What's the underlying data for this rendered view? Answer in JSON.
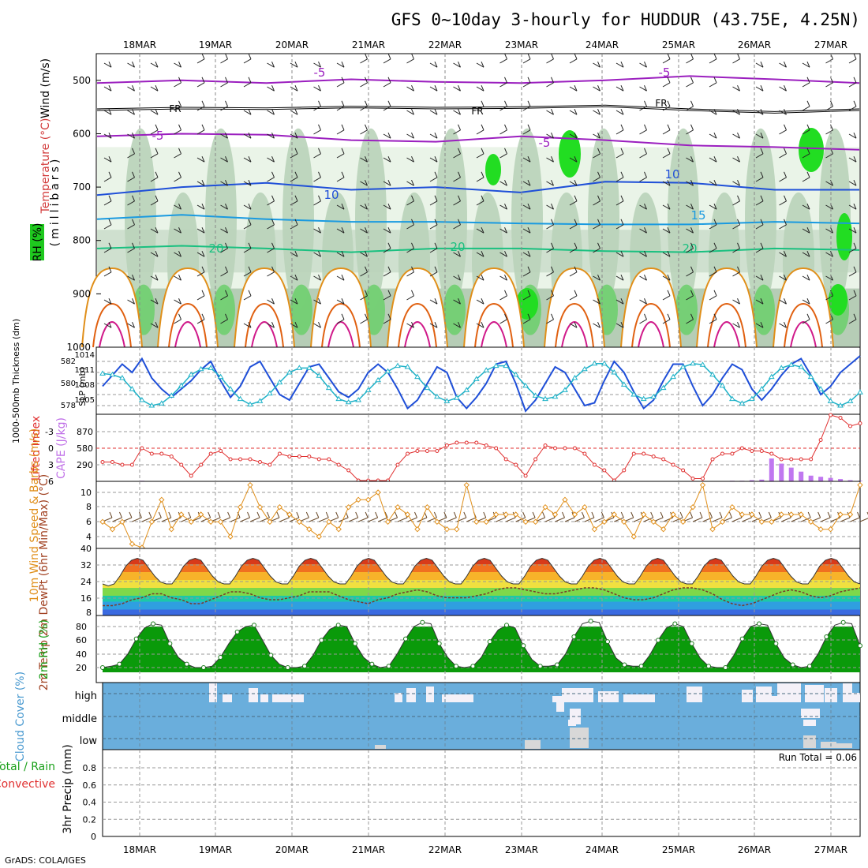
{
  "title": "GFS 0~10day 3-hourly for HUDDUR (43.75E, 4.25N)",
  "credit": "GrADS: COLA/IGES",
  "dates": [
    "18MAR",
    "19MAR",
    "20MAR",
    "21MAR",
    "22MAR",
    "23MAR",
    "24MAR",
    "25MAR",
    "26MAR",
    "27MAR"
  ],
  "colors": {
    "purple": "#9b1fbf",
    "blue": "#1f4fd8",
    "cyan": "#1fb2c8",
    "orange": "#e08f1a",
    "red": "#e03030",
    "green": "#1aa01a",
    "magenta": "#d01a8a",
    "lightblue": "#6aaedc"
  },
  "chart_data": [
    {
      "type": "line",
      "panel": "upper-air",
      "ylabel": "(millibars)",
      "legend_labels": [
        "Wind (m/s)",
        "Temperature (°C)",
        "RH (%)"
      ],
      "y_ticks": [
        "500",
        "600",
        "700",
        "800",
        "900",
        "1000"
      ],
      "ylim": [
        1000,
        450
      ],
      "contour_labels": [
        "-5",
        "-5",
        "-5",
        "-5",
        "FR",
        "FR",
        "FR",
        "10",
        "10",
        "15",
        "20",
        "20",
        "20"
      ],
      "series": [
        {
          "name": "-5 upper (hPa)",
          "values": [
            505,
            500,
            505,
            498,
            503,
            505,
            500,
            492,
            498,
            505
          ]
        },
        {
          "name": "FR (hPa)",
          "values": [
            555,
            552,
            553,
            550,
            552,
            551,
            548,
            555,
            560,
            555
          ]
        },
        {
          "name": "-5 lower (hPa)",
          "values": [
            605,
            600,
            602,
            612,
            615,
            605,
            612,
            622,
            625,
            630
          ]
        },
        {
          "name": "10 (hPa)",
          "values": [
            715,
            700,
            692,
            705,
            700,
            710,
            690,
            692,
            705,
            705
          ]
        },
        {
          "name": "15 (hPa)",
          "values": [
            760,
            752,
            760,
            765,
            765,
            768,
            770,
            770,
            765,
            768
          ]
        },
        {
          "name": "20 (hPa)",
          "values": [
            815,
            810,
            815,
            822,
            815,
            815,
            820,
            822,
            815,
            818
          ]
        }
      ]
    },
    {
      "type": "line",
      "panel": "thickness-slp",
      "ylabel_left": "1000-500mb Thickness (dm)",
      "ylabel_right": "SLP (mb)",
      "left_ticks": [
        "582",
        "580",
        "578"
      ],
      "right_ticks": [
        "1014",
        "1011",
        "1008",
        "1005"
      ],
      "series": [
        {
          "name": "SLP (mb)",
          "values": [
            1008.5,
            1010.5,
            1012.5,
            1011,
            1013.5,
            1010,
            1008,
            1006.5,
            1008,
            1009.5,
            1011.5,
            1013,
            1009.5,
            1006.5,
            1008.5,
            1012,
            1013,
            1010,
            1007,
            1006,
            1009,
            1012,
            1012.5,
            1010,
            1007.5,
            1006.5,
            1008,
            1011,
            1012.5,
            1011,
            1008,
            1004.5,
            1006,
            1009,
            1012,
            1011,
            1006.5,
            1004.5,
            1006.5,
            1009,
            1012.5,
            1013,
            1009,
            1004,
            1006,
            1009,
            1012,
            1011,
            1008,
            1005,
            1005.5,
            1009.5,
            1013,
            1011,
            1007.5,
            1004.5,
            1006,
            1009.5,
            1012.5,
            1012.5,
            1008.5,
            1005,
            1007,
            1010,
            1012.5,
            1011.5,
            1008,
            1006,
            1008,
            1010.5,
            1012.5,
            1013.5,
            1010.5,
            1007,
            1008.5,
            1011,
            1012.5,
            1014
          ]
        },
        {
          "name": "Thickness (dm)",
          "values": [
            580.9,
            580.8,
            580.5,
            579.5,
            578.5,
            578,
            578.2,
            578.9,
            579.8,
            580.8,
            581.3,
            581.4,
            580.6,
            579.5,
            578.6,
            578.1,
            578.4,
            579.1,
            580.1,
            581,
            581.4,
            581.4,
            580.7,
            579.6,
            578.6,
            578.3,
            578.5,
            579.4,
            580.3,
            581.1,
            581.6,
            581.5,
            580.6,
            579.6,
            578.8,
            578.4,
            578.7,
            579.4,
            580.4,
            581.2,
            581.6,
            581.6,
            580.8,
            579.8,
            578.9,
            578.6,
            578.8,
            579.4,
            580.5,
            581.3,
            581.8,
            581.8,
            581,
            579.9,
            579,
            578.6,
            578.8,
            579.6,
            580.6,
            581.5,
            581.8,
            581.7,
            580.8,
            579.8,
            578.6,
            578.2,
            578.6,
            579.5,
            580.6,
            581.4,
            581.7,
            581.5,
            580.6,
            579.5,
            578.4,
            578,
            578.4,
            579.2
          ]
        }
      ]
    },
    {
      "type": "bar",
      "panel": "stability",
      "ylabel_left": "Lifted Index",
      "ylabel_right": "CAPE (J/kg)",
      "left_ticks": [
        "-3",
        "0",
        "3",
        "6"
      ],
      "right_ticks": [
        "870",
        "580",
        "290"
      ],
      "series": [
        {
          "name": "Lifted Index",
          "values": [
            2.5,
            2.5,
            3,
            3,
            0,
            1,
            1,
            1.5,
            3,
            5,
            3,
            1,
            0.5,
            2,
            2,
            2,
            2.5,
            3,
            1,
            1.5,
            1.5,
            1.5,
            2,
            2,
            3,
            4,
            6,
            6,
            6,
            6,
            3,
            1,
            0.5,
            0.5,
            0.5,
            -0.5,
            -1,
            -1,
            -1,
            -0.5,
            0,
            2,
            3,
            5,
            2,
            -0.5,
            0,
            0,
            0,
            1,
            3,
            4,
            6,
            4,
            1,
            1,
            1.5,
            2,
            3,
            4,
            5.5,
            5.5,
            2,
            1,
            1,
            0,
            0.5,
            0.5,
            1,
            2,
            2,
            2,
            2,
            -1.5,
            -6,
            -5.5,
            -4,
            -4.5
          ]
        },
        {
          "name": "CAPE (J/kg)",
          "values": [
            0,
            0,
            0,
            0,
            10,
            0,
            0,
            0,
            0,
            0,
            0,
            0,
            0,
            0,
            0,
            0,
            0,
            0,
            0,
            0,
            0,
            0,
            0,
            0,
            0,
            0,
            0,
            0,
            0,
            0,
            0,
            0,
            0,
            0,
            0,
            0,
            0,
            0,
            0,
            0,
            0,
            0,
            0,
            0,
            0,
            0,
            0,
            0,
            0,
            0,
            0,
            0,
            0,
            0,
            0,
            0,
            0,
            0,
            0,
            0,
            0,
            0,
            0,
            5,
            10,
            10,
            20,
            30,
            400,
            310,
            240,
            170,
            100,
            80,
            60,
            40,
            20,
            10
          ]
        }
      ]
    },
    {
      "type": "line",
      "panel": "wind",
      "ylabel": "10m Wind Speed & Barbs (m/s)",
      "y_ticks": [
        "10",
        "8",
        "6",
        "4"
      ],
      "series": [
        {
          "name": "10m Wind Speed (m/s)",
          "values": [
            6,
            5,
            6,
            3,
            1,
            6,
            9,
            5,
            7,
            6,
            7,
            6,
            6,
            4,
            8,
            11,
            8,
            6,
            8,
            7,
            6,
            5,
            4,
            6,
            5,
            8,
            9,
            9,
            10,
            6,
            8,
            7,
            5,
            8,
            6,
            5,
            5,
            11,
            6,
            6,
            7,
            7,
            7,
            6,
            6,
            8,
            7,
            9,
            7,
            8,
            5,
            6,
            7,
            6,
            4,
            7,
            6,
            5,
            7,
            6,
            8,
            11,
            5,
            6,
            8,
            7,
            7,
            6,
            6,
            7,
            7,
            7,
            6,
            5,
            5,
            7,
            7,
            11
          ]
        }
      ]
    },
    {
      "type": "area",
      "panel": "temperature",
      "ylabel": "2m Temp 2m DewPt (6hr Min/Max) (°C)",
      "y_ticks": [
        "40",
        "32",
        "24",
        "16",
        "8"
      ],
      "series": [
        {
          "name": "2m Temp (°C)",
          "values": [
            22,
            21,
            22,
            26,
            31,
            34,
            35,
            34,
            30,
            26,
            23,
            22,
            22,
            26,
            31,
            34,
            35,
            34,
            30,
            26,
            23,
            22,
            22,
            26,
            31,
            34,
            35,
            34,
            30,
            26,
            23,
            22,
            22,
            26,
            31,
            34,
            35,
            34,
            30,
            26,
            23,
            22,
            22,
            26,
            31,
            34,
            35,
            34,
            30,
            26,
            23,
            22,
            22,
            26,
            31,
            34,
            35,
            34,
            30,
            26,
            23,
            22,
            22,
            26,
            31,
            34,
            35,
            34,
            30,
            26,
            23,
            22,
            22,
            26,
            31,
            34,
            35,
            34,
            30,
            26,
            23,
            22,
            22,
            26,
            31,
            34,
            35,
            34,
            30,
            26,
            23,
            22,
            22,
            26,
            31,
            34,
            35,
            34,
            30,
            26,
            23,
            22,
            22,
            26,
            31,
            34,
            35,
            34,
            30,
            26,
            23,
            22,
            22,
            26,
            31,
            34,
            35,
            34,
            30,
            26,
            23,
            22,
            22,
            26,
            31,
            34,
            35,
            34,
            30,
            26,
            23,
            22
          ]
        },
        {
          "name": "2m DewPt (°C)",
          "values": [
            11,
            11,
            12,
            14,
            15,
            17,
            17,
            15,
            14,
            12,
            12,
            14,
            16,
            18,
            18,
            17,
            15,
            14,
            14,
            15,
            16,
            18,
            18,
            18,
            16,
            14,
            13,
            12,
            14,
            15,
            17,
            18,
            19,
            18,
            16,
            15,
            15,
            15,
            16,
            17,
            19,
            20,
            20,
            19,
            18,
            17,
            17,
            18,
            19,
            20,
            20,
            19,
            17,
            15,
            14,
            14,
            15,
            17,
            19,
            20,
            20,
            19,
            17,
            14,
            12,
            11,
            12,
            14,
            16,
            18,
            19,
            18,
            16,
            15,
            16,
            18,
            19,
            20
          ]
        }
      ]
    },
    {
      "type": "area",
      "panel": "humidity",
      "ylabel": "2m RH (%)",
      "y_ticks": [
        "80",
        "60",
        "40",
        "20"
      ],
      "series": [
        {
          "name": "2m RH (%)",
          "values": [
            20,
            22,
            25,
            40,
            62,
            78,
            84,
            82,
            55,
            35,
            25,
            20,
            20,
            22,
            35,
            55,
            72,
            80,
            82,
            60,
            38,
            25,
            20,
            20,
            22,
            38,
            60,
            76,
            82,
            80,
            55,
            35,
            25,
            20,
            22,
            40,
            62,
            80,
            86,
            84,
            55,
            35,
            22,
            20,
            22,
            35,
            58,
            75,
            82,
            78,
            52,
            32,
            22,
            22,
            24,
            40,
            65,
            84,
            88,
            86,
            58,
            34,
            24,
            22,
            22,
            38,
            60,
            78,
            84,
            80,
            55,
            34,
            22,
            20,
            20,
            38,
            62,
            80,
            84,
            82,
            55,
            34,
            24,
            20,
            22,
            40,
            65,
            82,
            86,
            84,
            52
          ]
        }
      ]
    },
    {
      "type": "bar",
      "panel": "cloud",
      "ylabel": "Cloud Cover (%)",
      "levels": [
        "high",
        "middle",
        "low"
      ],
      "series": [
        {
          "name": "high (%)",
          "values": [
            0,
            0,
            0,
            0,
            0,
            0,
            0,
            0,
            0,
            0,
            0,
            0,
            0,
            0,
            0,
            0,
            0,
            0,
            0,
            0,
            0,
            25,
            0,
            0,
            0,
            0,
            0,
            0,
            10,
            20,
            5,
            0,
            0,
            0,
            0,
            0,
            10,
            0,
            0,
            0,
            0,
            0,
            0,
            0,
            0,
            0,
            0,
            0,
            0,
            0,
            0,
            0,
            0,
            0,
            0,
            0,
            0,
            0,
            0,
            0,
            0,
            0,
            0,
            0,
            0,
            0,
            0,
            0,
            0,
            0,
            0,
            0,
            0,
            0,
            0,
            0,
            0,
            0,
            0,
            0,
            0,
            0,
            0,
            0,
            0,
            0,
            0,
            0,
            0,
            0,
            0,
            0,
            0,
            0,
            0,
            0,
            0,
            0,
            0,
            0,
            0,
            0,
            0,
            0,
            0,
            0,
            0,
            0,
            0,
            0,
            0,
            0,
            0,
            0,
            0,
            0,
            0,
            0,
            0,
            0,
            0,
            0,
            0,
            0,
            0,
            0,
            0,
            0,
            0,
            0,
            0,
            0,
            0,
            0,
            0,
            0,
            0,
            0,
            0,
            0,
            0,
            0,
            0,
            0,
            0,
            0,
            0,
            0,
            0,
            0,
            0,
            0,
            0,
            0,
            0,
            0,
            0,
            0,
            0,
            0,
            0,
            0,
            0,
            0,
            0,
            0,
            0,
            0,
            0,
            0,
            0,
            0,
            0,
            0,
            0,
            0,
            0,
            0,
            0,
            0,
            0,
            0,
            0,
            0,
            0,
            0,
            0,
            0,
            0,
            0,
            0,
            0,
            0,
            0,
            0,
            0,
            0,
            0,
            0,
            0,
            0,
            0,
            0
          ]
        },
        {
          "name": "middle (%)",
          "values": [
            0
          ]
        },
        {
          "name": "low (%)",
          "values": [
            0
          ]
        }
      ]
    },
    {
      "type": "bar",
      "panel": "precip",
      "ylabel": "3hr Precip (mm)",
      "legend_labels": [
        "Total / Rain",
        "Convective"
      ],
      "y_ticks": [
        "0.8",
        "0.6",
        "0.4",
        "0.2",
        "0"
      ],
      "ylim": [
        0,
        0.9
      ],
      "run_total": "Run Total = 0.06"
    }
  ]
}
